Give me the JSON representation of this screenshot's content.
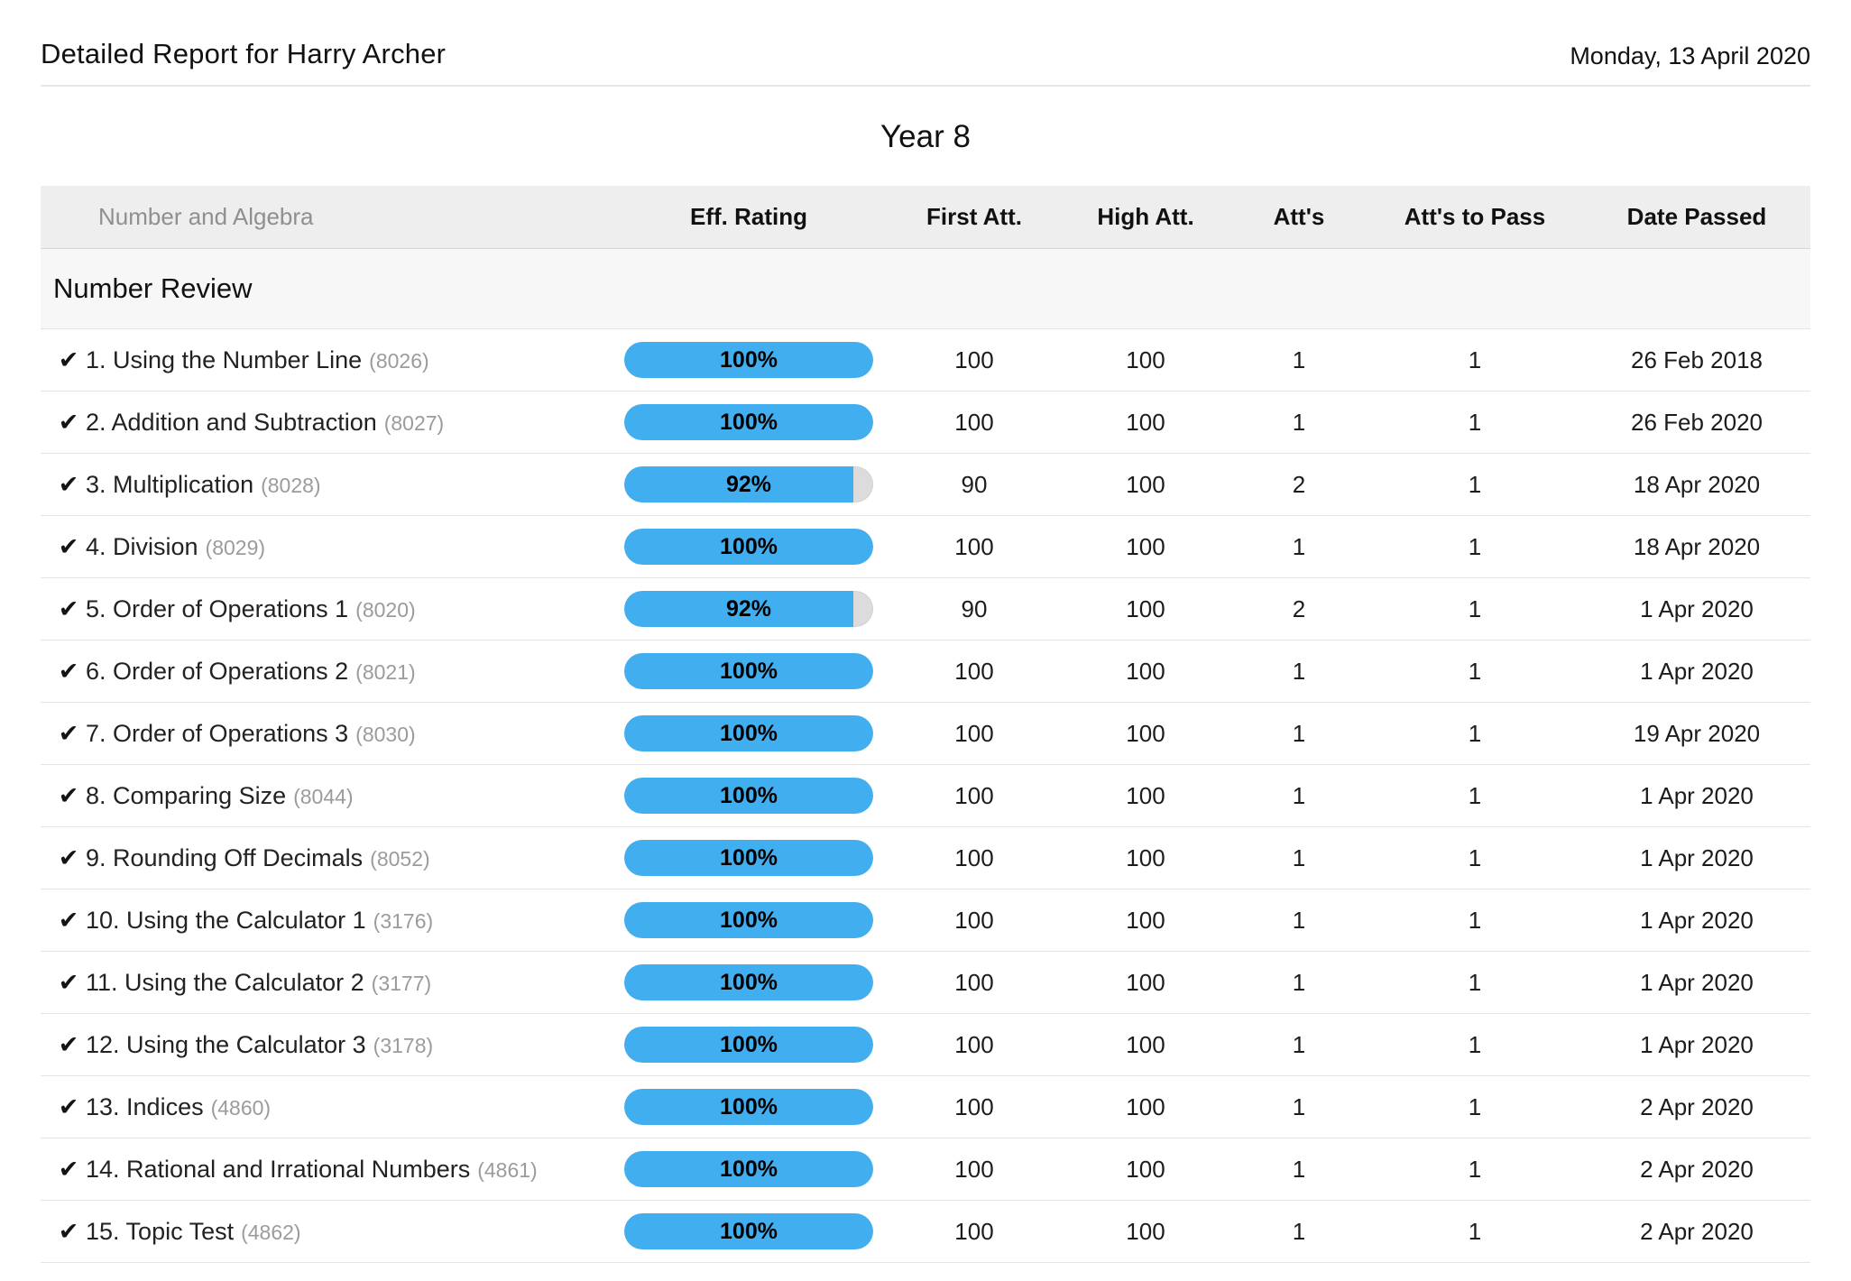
{
  "header": {
    "title": "Detailed Report for Harry Archer",
    "date": "Monday, 13 April 2020"
  },
  "year_title": "Year 8",
  "icons": {
    "check": "✔"
  },
  "colors": {
    "accent_blue": "#41aef0",
    "pill_track": "#dcdcdc",
    "header_band": "#eeeeee",
    "section_band": "#f7f7f7"
  },
  "table": {
    "strand_label": "Number and Algebra",
    "columns": [
      "Eff. Rating",
      "First Att.",
      "High Att.",
      "Att's",
      "Att's to Pass",
      "Date Passed"
    ],
    "section": "Number Review",
    "rows": [
      {
        "title": "1. Using the Number Line",
        "id": "(8026)",
        "eff_label": "100%",
        "eff_pct": 100,
        "first_att": "100",
        "high_att": "100",
        "atts": "1",
        "atts_to_pass": "1",
        "date_passed": "26 Feb 2018"
      },
      {
        "title": "2. Addition and Subtraction",
        "id": "(8027)",
        "eff_label": "100%",
        "eff_pct": 100,
        "first_att": "100",
        "high_att": "100",
        "atts": "1",
        "atts_to_pass": "1",
        "date_passed": "26 Feb 2020"
      },
      {
        "title": "3. Multiplication",
        "id": "(8028)",
        "eff_label": "92%",
        "eff_pct": 92,
        "first_att": "90",
        "high_att": "100",
        "atts": "2",
        "atts_to_pass": "1",
        "date_passed": "18 Apr 2020"
      },
      {
        "title": "4. Division",
        "id": "(8029)",
        "eff_label": "100%",
        "eff_pct": 100,
        "first_att": "100",
        "high_att": "100",
        "atts": "1",
        "atts_to_pass": "1",
        "date_passed": "18 Apr 2020"
      },
      {
        "title": "5. Order of Operations 1",
        "id": "(8020)",
        "eff_label": "92%",
        "eff_pct": 92,
        "first_att": "90",
        "high_att": "100",
        "atts": "2",
        "atts_to_pass": "1",
        "date_passed": "1 Apr 2020"
      },
      {
        "title": "6. Order of Operations 2",
        "id": "(8021)",
        "eff_label": "100%",
        "eff_pct": 100,
        "first_att": "100",
        "high_att": "100",
        "atts": "1",
        "atts_to_pass": "1",
        "date_passed": "1 Apr 2020"
      },
      {
        "title": "7. Order of Operations 3",
        "id": "(8030)",
        "eff_label": "100%",
        "eff_pct": 100,
        "first_att": "100",
        "high_att": "100",
        "atts": "1",
        "atts_to_pass": "1",
        "date_passed": "19 Apr 2020"
      },
      {
        "title": "8. Comparing Size",
        "id": "(8044)",
        "eff_label": "100%",
        "eff_pct": 100,
        "first_att": "100",
        "high_att": "100",
        "atts": "1",
        "atts_to_pass": "1",
        "date_passed": "1 Apr 2020"
      },
      {
        "title": "9. Rounding Off Decimals",
        "id": "(8052)",
        "eff_label": "100%",
        "eff_pct": 100,
        "first_att": "100",
        "high_att": "100",
        "atts": "1",
        "atts_to_pass": "1",
        "date_passed": "1 Apr 2020"
      },
      {
        "title": "10. Using the Calculator 1",
        "id": "(3176)",
        "eff_label": "100%",
        "eff_pct": 100,
        "first_att": "100",
        "high_att": "100",
        "atts": "1",
        "atts_to_pass": "1",
        "date_passed": "1 Apr 2020"
      },
      {
        "title": "11. Using the Calculator 2",
        "id": "(3177)",
        "eff_label": "100%",
        "eff_pct": 100,
        "first_att": "100",
        "high_att": "100",
        "atts": "1",
        "atts_to_pass": "1",
        "date_passed": "1 Apr 2020"
      },
      {
        "title": "12. Using the Calculator 3",
        "id": "(3178)",
        "eff_label": "100%",
        "eff_pct": 100,
        "first_att": "100",
        "high_att": "100",
        "atts": "1",
        "atts_to_pass": "1",
        "date_passed": "1 Apr 2020"
      },
      {
        "title": "13. Indices",
        "id": "(4860)",
        "eff_label": "100%",
        "eff_pct": 100,
        "first_att": "100",
        "high_att": "100",
        "atts": "1",
        "atts_to_pass": "1",
        "date_passed": "2 Apr 2020"
      },
      {
        "title": "14. Rational and Irrational Numbers",
        "id": "(4861)",
        "eff_label": "100%",
        "eff_pct": 100,
        "first_att": "100",
        "high_att": "100",
        "atts": "1",
        "atts_to_pass": "1",
        "date_passed": "2 Apr 2020"
      },
      {
        "title": "15. Topic Test",
        "id": "(4862)",
        "eff_label": "100%",
        "eff_pct": 100,
        "first_att": "100",
        "high_att": "100",
        "atts": "1",
        "atts_to_pass": "1",
        "date_passed": "2 Apr 2020"
      }
    ]
  }
}
